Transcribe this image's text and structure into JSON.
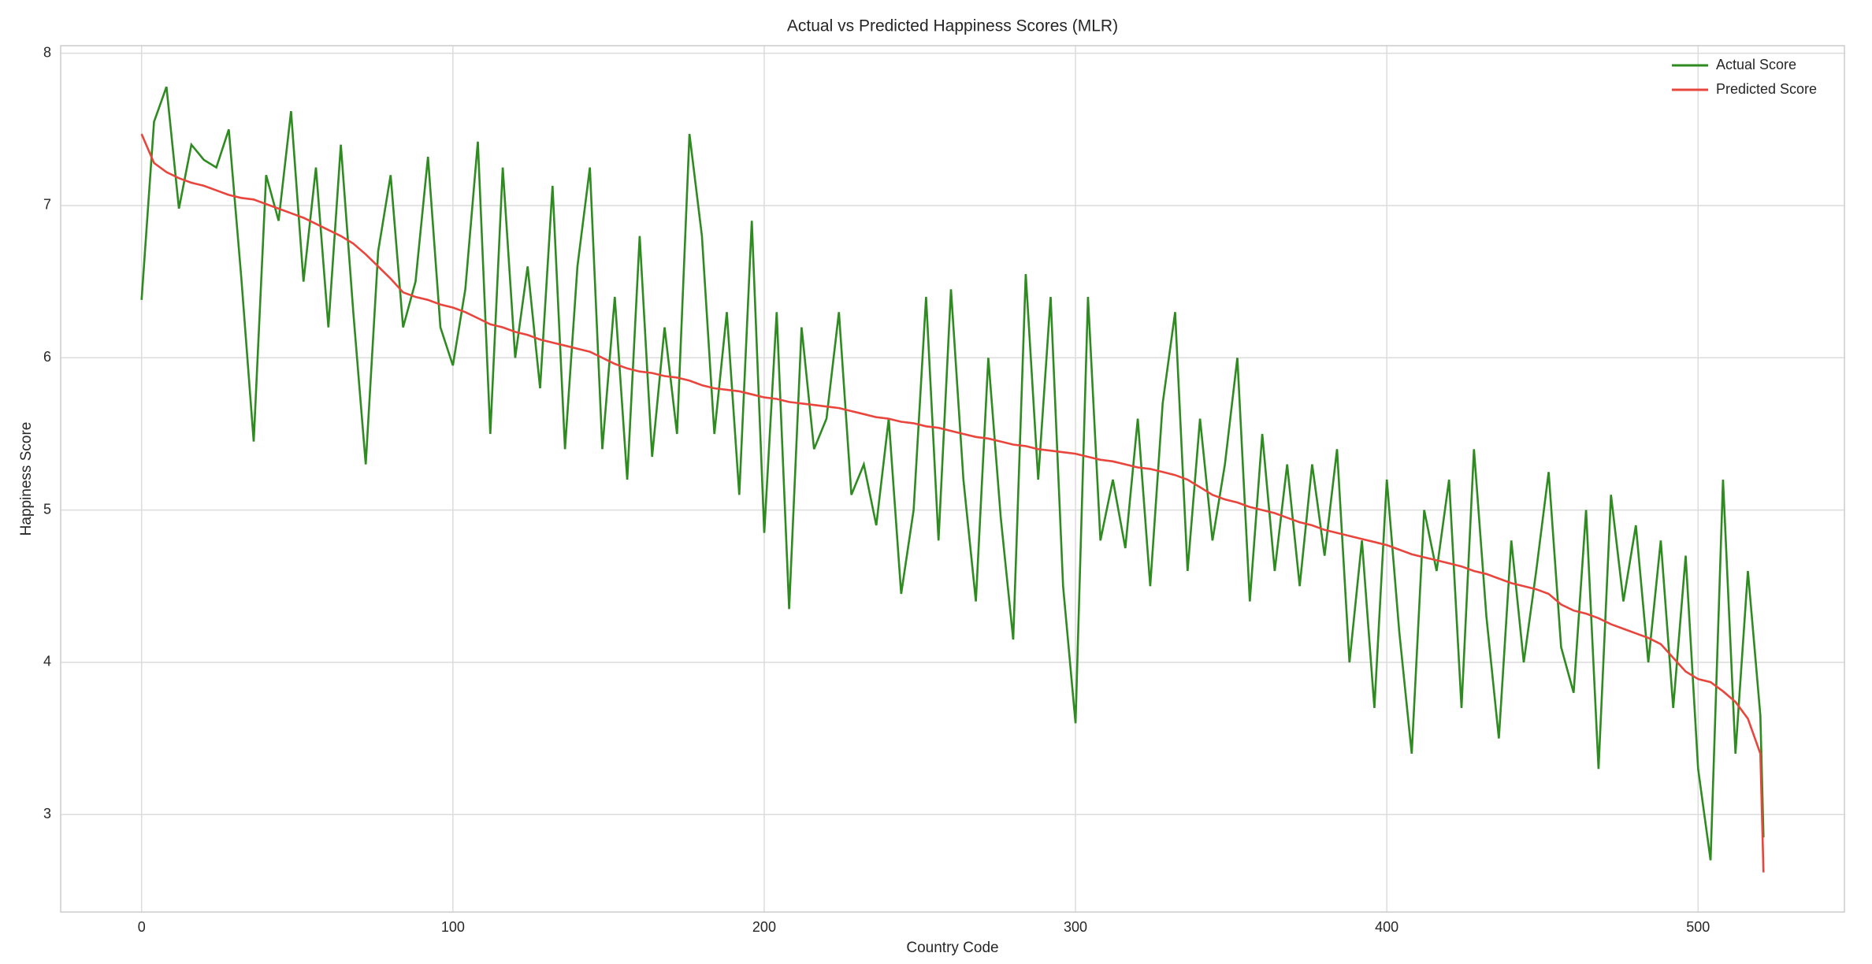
{
  "chart_data": {
    "type": "line",
    "title": "Actual vs Predicted Happiness Scores (MLR)",
    "xlabel": "Country Code",
    "ylabel": "Happiness Score",
    "x": [
      0,
      4,
      8,
      12,
      16,
      20,
      24,
      28,
      32,
      36,
      40,
      44,
      48,
      52,
      56,
      60,
      64,
      68,
      72,
      76,
      80,
      84,
      88,
      92,
      96,
      100,
      104,
      108,
      112,
      116,
      120,
      124,
      128,
      132,
      136,
      140,
      144,
      148,
      152,
      156,
      160,
      164,
      168,
      172,
      176,
      180,
      184,
      188,
      192,
      196,
      200,
      204,
      208,
      212,
      216,
      220,
      224,
      228,
      232,
      236,
      240,
      244,
      248,
      252,
      256,
      260,
      264,
      268,
      272,
      276,
      280,
      284,
      288,
      292,
      296,
      300,
      304,
      308,
      312,
      316,
      320,
      324,
      328,
      332,
      336,
      340,
      344,
      348,
      352,
      356,
      360,
      364,
      368,
      372,
      376,
      380,
      384,
      388,
      392,
      396,
      400,
      404,
      408,
      412,
      416,
      420,
      424,
      428,
      432,
      436,
      440,
      444,
      448,
      452,
      456,
      460,
      464,
      468,
      472,
      476,
      480,
      484,
      488,
      492,
      496,
      500,
      504,
      508,
      512,
      516,
      520,
      521
    ],
    "series": [
      {
        "name": "Actual Score",
        "color": "#2e8b20",
        "values": [
          6.38,
          7.55,
          7.78,
          6.98,
          7.4,
          7.3,
          7.25,
          7.5,
          6.53,
          5.45,
          7.2,
          6.9,
          7.62,
          6.5,
          7.25,
          6.2,
          7.4,
          6.3,
          5.3,
          6.7,
          7.2,
          6.2,
          6.5,
          7.32,
          6.2,
          5.95,
          6.45,
          7.42,
          5.5,
          7.25,
          6.0,
          6.6,
          5.8,
          7.13,
          5.4,
          6.6,
          7.25,
          5.4,
          6.4,
          5.2,
          6.8,
          5.35,
          6.2,
          5.5,
          7.47,
          6.8,
          5.5,
          6.3,
          5.1,
          6.9,
          4.85,
          6.3,
          4.35,
          6.2,
          5.4,
          5.6,
          6.3,
          5.1,
          5.3,
          4.9,
          5.6,
          4.45,
          5.0,
          6.4,
          4.8,
          6.45,
          5.2,
          4.4,
          6.0,
          4.95,
          4.15,
          6.55,
          5.2,
          6.4,
          4.5,
          3.6,
          6.4,
          4.8,
          5.2,
          4.75,
          5.6,
          4.5,
          5.7,
          6.3,
          4.6,
          5.6,
          4.8,
          5.3,
          6.0,
          4.4,
          5.5,
          4.6,
          5.3,
          4.5,
          5.3,
          4.7,
          5.4,
          4.0,
          4.8,
          3.7,
          5.2,
          4.2,
          3.4,
          5.0,
          4.6,
          5.2,
          3.7,
          5.4,
          4.3,
          3.5,
          4.8,
          4.0,
          4.6,
          5.25,
          4.1,
          3.8,
          5.0,
          3.3,
          5.1,
          4.4,
          4.9,
          4.0,
          4.8,
          3.7,
          4.7,
          3.3,
          2.7,
          5.2,
          3.4,
          4.6,
          3.65,
          2.85
        ]
      },
      {
        "name": "Predicted Score",
        "color": "#e8453c",
        "values": [
          7.47,
          7.28,
          7.22,
          7.18,
          7.15,
          7.13,
          7.1,
          7.07,
          7.05,
          7.04,
          7.01,
          6.98,
          6.95,
          6.92,
          6.88,
          6.84,
          6.8,
          6.75,
          6.68,
          6.6,
          6.52,
          6.43,
          6.4,
          6.38,
          6.35,
          6.33,
          6.3,
          6.26,
          6.22,
          6.2,
          6.17,
          6.15,
          6.12,
          6.1,
          6.08,
          6.06,
          6.04,
          6.0,
          5.96,
          5.93,
          5.91,
          5.9,
          5.88,
          5.87,
          5.85,
          5.82,
          5.8,
          5.79,
          5.78,
          5.76,
          5.74,
          5.73,
          5.71,
          5.7,
          5.69,
          5.68,
          5.67,
          5.65,
          5.63,
          5.61,
          5.6,
          5.58,
          5.57,
          5.55,
          5.54,
          5.52,
          5.5,
          5.48,
          5.47,
          5.45,
          5.43,
          5.42,
          5.4,
          5.39,
          5.38,
          5.37,
          5.35,
          5.33,
          5.32,
          5.3,
          5.28,
          5.27,
          5.25,
          5.23,
          5.2,
          5.15,
          5.1,
          5.07,
          5.05,
          5.02,
          5.0,
          4.98,
          4.95,
          4.92,
          4.9,
          4.87,
          4.85,
          4.83,
          4.81,
          4.79,
          4.77,
          4.74,
          4.71,
          4.69,
          4.67,
          4.65,
          4.63,
          4.6,
          4.58,
          4.55,
          4.52,
          4.5,
          4.48,
          4.45,
          4.38,
          4.34,
          4.32,
          4.29,
          4.25,
          4.22,
          4.19,
          4.16,
          4.12,
          4.03,
          3.94,
          3.89,
          3.87,
          3.81,
          3.74,
          3.63,
          3.4,
          2.62
        ]
      }
    ],
    "xlim": [
      -26,
      547
    ],
    "ylim": [
      2.36,
      8.05
    ],
    "xticks": [
      0,
      100,
      200,
      300,
      400,
      500
    ],
    "yticks": [
      3,
      4,
      5,
      6,
      7,
      8
    ],
    "grid": true,
    "legend": "upper right"
  }
}
